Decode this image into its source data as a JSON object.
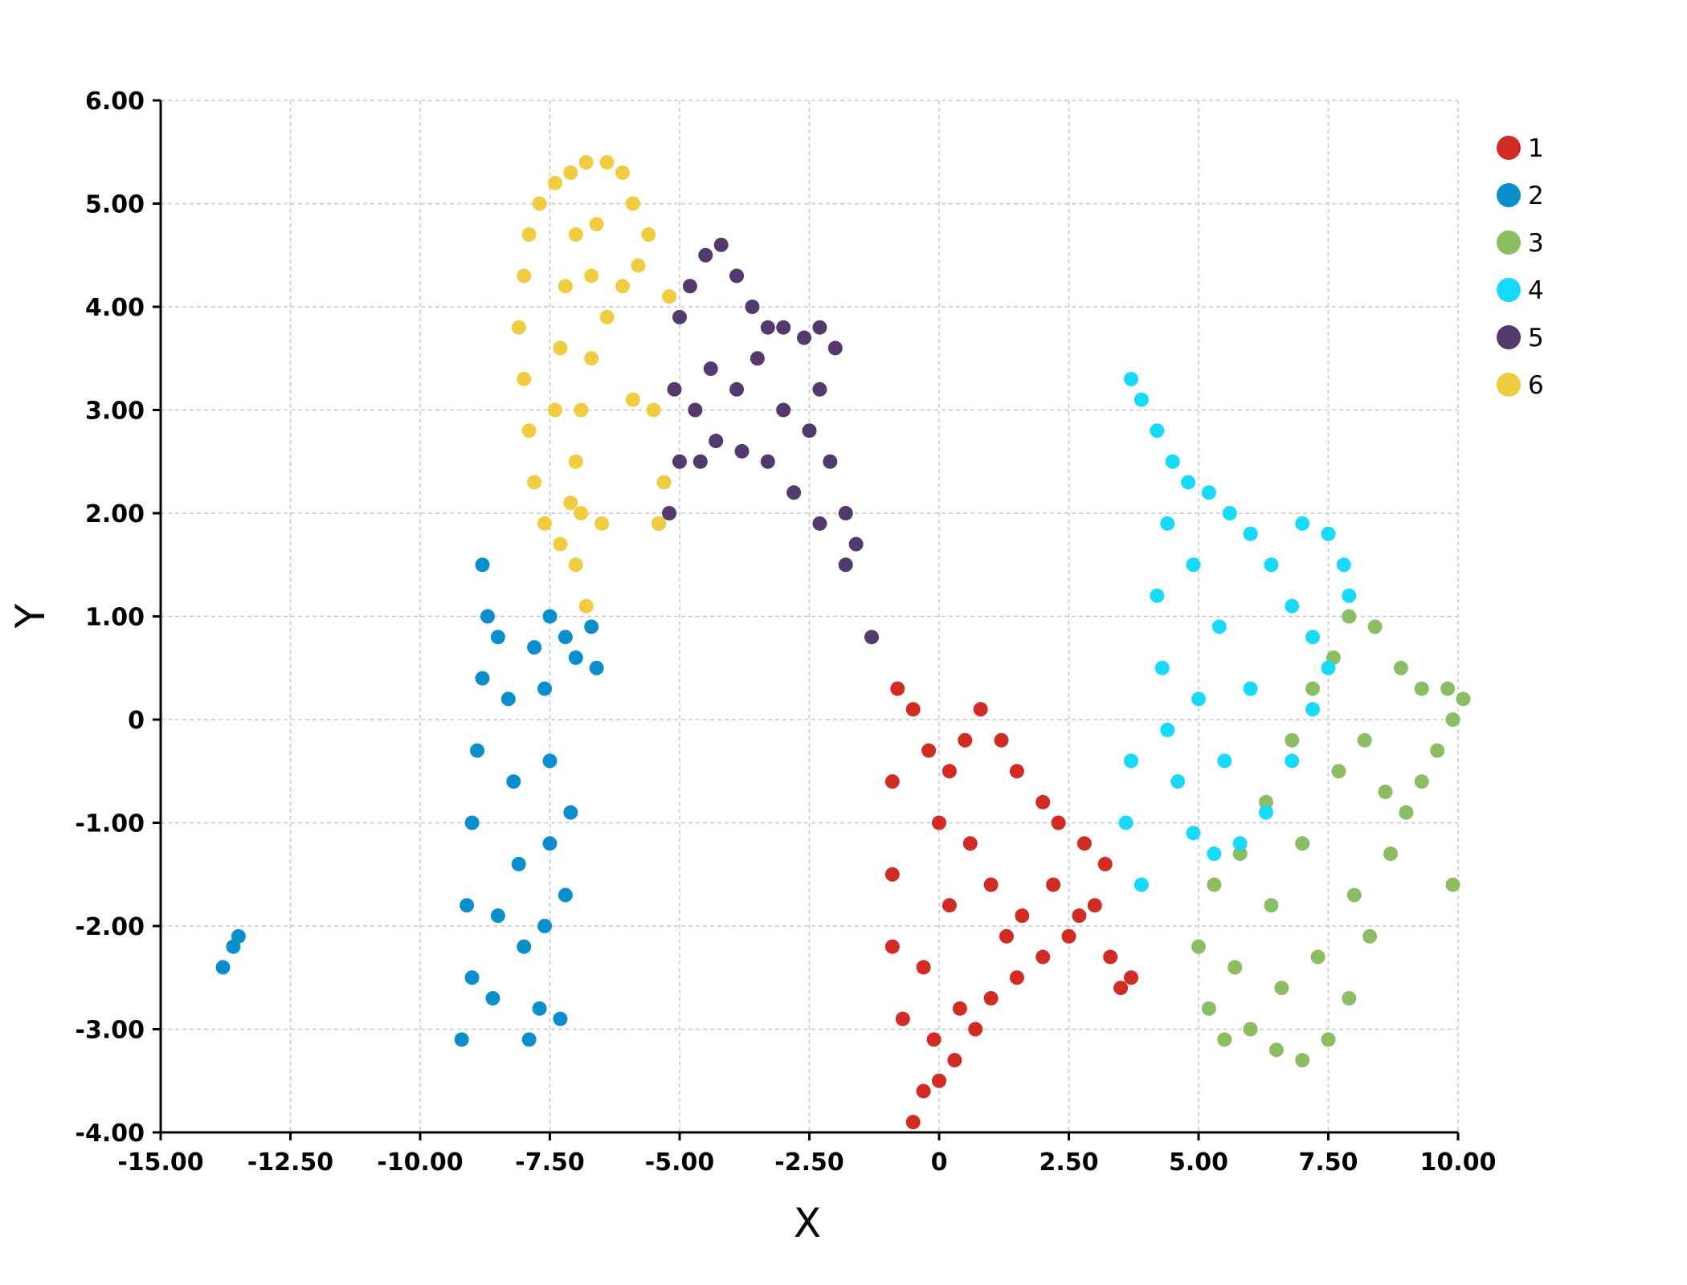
{
  "chart_data": {
    "type": "scatter",
    "title": "",
    "xlabel": "X",
    "ylabel": "Y",
    "xlim": [
      -15,
      10
    ],
    "ylim": [
      -4,
      6
    ],
    "xticks": [
      {
        "value": -15,
        "label": "-15.00"
      },
      {
        "value": -12.5,
        "label": "-12.50"
      },
      {
        "value": -10,
        "label": "-10.00"
      },
      {
        "value": -7.5,
        "label": "-7.50"
      },
      {
        "value": -5,
        "label": "-5.00"
      },
      {
        "value": -2.5,
        "label": "-2.50"
      },
      {
        "value": 0,
        "label": "0"
      },
      {
        "value": 2.5,
        "label": "2.50"
      },
      {
        "value": 5,
        "label": "5.00"
      },
      {
        "value": 7.5,
        "label": "7.50"
      },
      {
        "value": 10,
        "label": "10.00"
      }
    ],
    "yticks": [
      {
        "value": 6,
        "label": "6.00"
      },
      {
        "value": 5,
        "label": "5.00"
      },
      {
        "value": 4,
        "label": "4.00"
      },
      {
        "value": 3,
        "label": "3.00"
      },
      {
        "value": 2,
        "label": "2.00"
      },
      {
        "value": 1,
        "label": "1.00"
      },
      {
        "value": 0,
        "label": "0"
      },
      {
        "value": -1,
        "label": "-1.00"
      },
      {
        "value": -2,
        "label": "-2.00"
      },
      {
        "value": -3,
        "label": "-3.00"
      },
      {
        "value": -4,
        "label": "-4.00"
      }
    ],
    "grid": true,
    "legend_position": "top-right",
    "series": [
      {
        "name": "1",
        "color": "#D12B24",
        "points": [
          [
            -0.5,
            -3.9
          ],
          [
            -0.3,
            -3.6
          ],
          [
            0,
            -3.5
          ],
          [
            0.3,
            -3.3
          ],
          [
            0.7,
            -3.0
          ],
          [
            1.0,
            -2.7
          ],
          [
            1.5,
            -2.5
          ],
          [
            2.0,
            -2.3
          ],
          [
            2.5,
            -2.1
          ],
          [
            3.0,
            -1.8
          ],
          [
            3.2,
            -1.4
          ],
          [
            2.8,
            -1.2
          ],
          [
            2.3,
            -1.0
          ],
          [
            2.0,
            -0.8
          ],
          [
            1.5,
            -0.5
          ],
          [
            1.2,
            -0.2
          ],
          [
            0.8,
            0.1
          ],
          [
            0.5,
            -0.2
          ],
          [
            0.2,
            -0.5
          ],
          [
            -0.2,
            -0.3
          ],
          [
            -0.5,
            0.1
          ],
          [
            -0.8,
            0.3
          ],
          [
            -0.9,
            -0.6
          ],
          [
            -0.9,
            -1.5
          ],
          [
            -0.9,
            -2.2
          ],
          [
            -0.7,
            -2.9
          ],
          [
            -0.3,
            -2.4
          ],
          [
            0.2,
            -1.8
          ],
          [
            0.6,
            -1.2
          ],
          [
            1.0,
            -1.6
          ],
          [
            1.6,
            -1.9
          ],
          [
            2.2,
            -1.6
          ],
          [
            2.7,
            -1.9
          ],
          [
            3.3,
            -2.3
          ],
          [
            3.5,
            -2.6
          ],
          [
            3.7,
            -2.5
          ],
          [
            0.0,
            -1.0
          ],
          [
            0.4,
            -2.8
          ],
          [
            -0.1,
            -3.1
          ],
          [
            1.3,
            -2.1
          ]
        ]
      },
      {
        "name": "2",
        "color": "#0A8FCE",
        "points": [
          [
            -9.2,
            -3.1
          ],
          [
            -9.0,
            -2.5
          ],
          [
            -9.1,
            -1.8
          ],
          [
            -9.0,
            -1.0
          ],
          [
            -8.9,
            -0.3
          ],
          [
            -8.8,
            0.4
          ],
          [
            -8.7,
            1.0
          ],
          [
            -8.8,
            1.5
          ],
          [
            -8.5,
            0.8
          ],
          [
            -8.3,
            0.2
          ],
          [
            -8.2,
            -0.6
          ],
          [
            -8.1,
            -1.4
          ],
          [
            -8.0,
            -2.2
          ],
          [
            -7.9,
            -3.1
          ],
          [
            -7.7,
            -2.8
          ],
          [
            -7.6,
            -2.0
          ],
          [
            -7.5,
            -1.2
          ],
          [
            -7.5,
            -0.4
          ],
          [
            -7.6,
            0.3
          ],
          [
            -7.8,
            0.7
          ],
          [
            -7.5,
            1.0
          ],
          [
            -7.2,
            0.8
          ],
          [
            -7.0,
            0.6
          ],
          [
            -6.7,
            0.9
          ],
          [
            -6.6,
            0.5
          ],
          [
            -7.3,
            -2.9
          ],
          [
            -7.2,
            -1.7
          ],
          [
            -7.1,
            -0.9
          ],
          [
            -8.5,
            -1.9
          ],
          [
            -8.6,
            -2.7
          ],
          [
            -13.8,
            -2.4
          ],
          [
            -13.6,
            -2.2
          ],
          [
            -13.5,
            -2.1
          ]
        ]
      },
      {
        "name": "3",
        "color": "#8BBE62",
        "points": [
          [
            5.2,
            -2.8
          ],
          [
            5.5,
            -3.1
          ],
          [
            6.0,
            -3.0
          ],
          [
            6.5,
            -3.2
          ],
          [
            7.0,
            -3.3
          ],
          [
            7.5,
            -3.1
          ],
          [
            7.9,
            -2.7
          ],
          [
            8.3,
            -2.1
          ],
          [
            8.7,
            -1.3
          ],
          [
            9.0,
            -0.9
          ],
          [
            9.3,
            -0.6
          ],
          [
            9.6,
            -0.3
          ],
          [
            9.9,
            0.0
          ],
          [
            10.1,
            0.2
          ],
          [
            9.8,
            0.3
          ],
          [
            9.3,
            0.3
          ],
          [
            8.9,
            0.5
          ],
          [
            8.4,
            0.9
          ],
          [
            7.9,
            1.0
          ],
          [
            7.6,
            0.6
          ],
          [
            7.2,
            0.3
          ],
          [
            6.8,
            -0.2
          ],
          [
            6.3,
            -0.8
          ],
          [
            5.8,
            -1.3
          ],
          [
            5.3,
            -1.6
          ],
          [
            5.0,
            -2.2
          ],
          [
            5.7,
            -2.4
          ],
          [
            6.4,
            -1.8
          ],
          [
            7.0,
            -1.2
          ],
          [
            7.7,
            -0.5
          ],
          [
            8.2,
            -0.2
          ],
          [
            8.6,
            -0.7
          ],
          [
            8.0,
            -1.7
          ],
          [
            7.3,
            -2.3
          ],
          [
            6.6,
            -2.6
          ],
          [
            9.9,
            -1.6
          ]
        ]
      },
      {
        "name": "4",
        "color": "#17DAFA",
        "points": [
          [
            3.7,
            3.3
          ],
          [
            3.9,
            3.1
          ],
          [
            4.2,
            2.8
          ],
          [
            4.5,
            2.5
          ],
          [
            4.8,
            2.3
          ],
          [
            5.2,
            2.2
          ],
          [
            5.6,
            2.0
          ],
          [
            6.0,
            1.8
          ],
          [
            6.4,
            1.5
          ],
          [
            6.8,
            1.1
          ],
          [
            7.2,
            0.8
          ],
          [
            7.5,
            0.5
          ],
          [
            7.2,
            0.1
          ],
          [
            6.8,
            -0.4
          ],
          [
            6.3,
            -0.9
          ],
          [
            5.8,
            -1.2
          ],
          [
            5.3,
            -1.3
          ],
          [
            4.9,
            -1.1
          ],
          [
            4.6,
            -0.6
          ],
          [
            4.4,
            -0.1
          ],
          [
            4.3,
            0.5
          ],
          [
            4.2,
            1.2
          ],
          [
            4.4,
            1.9
          ],
          [
            4.9,
            1.5
          ],
          [
            5.4,
            0.9
          ],
          [
            6.0,
            0.3
          ],
          [
            5.5,
            -0.4
          ],
          [
            5.0,
            0.2
          ],
          [
            7.0,
            1.9
          ],
          [
            7.5,
            1.8
          ],
          [
            7.8,
            1.5
          ],
          [
            7.9,
            1.2
          ],
          [
            3.7,
            -0.4
          ],
          [
            3.6,
            -1.0
          ],
          [
            3.9,
            -1.6
          ]
        ]
      },
      {
        "name": "5",
        "color": "#54396E",
        "points": [
          [
            -5.2,
            2.0
          ],
          [
            -5.4,
            1.9
          ],
          [
            -5.0,
            2.5
          ],
          [
            -5.1,
            3.2
          ],
          [
            -5.0,
            3.9
          ],
          [
            -4.8,
            4.2
          ],
          [
            -4.5,
            4.5
          ],
          [
            -4.2,
            4.6
          ],
          [
            -3.9,
            4.3
          ],
          [
            -3.6,
            4.0
          ],
          [
            -3.3,
            3.8
          ],
          [
            -3.0,
            3.8
          ],
          [
            -2.6,
            3.7
          ],
          [
            -2.3,
            3.8
          ],
          [
            -2.0,
            3.6
          ],
          [
            -2.3,
            3.2
          ],
          [
            -2.5,
            2.8
          ],
          [
            -2.1,
            2.5
          ],
          [
            -1.8,
            2.0
          ],
          [
            -1.6,
            1.7
          ],
          [
            -1.8,
            1.5
          ],
          [
            -2.3,
            1.9
          ],
          [
            -2.8,
            2.2
          ],
          [
            -3.3,
            2.5
          ],
          [
            -3.8,
            2.6
          ],
          [
            -4.3,
            2.7
          ],
          [
            -4.6,
            2.5
          ],
          [
            -4.7,
            3.0
          ],
          [
            -4.4,
            3.4
          ],
          [
            -3.9,
            3.2
          ],
          [
            -3.5,
            3.5
          ],
          [
            -3.0,
            3.0
          ],
          [
            -1.3,
            0.8
          ]
        ]
      },
      {
        "name": "6",
        "color": "#F0CC40",
        "points": [
          [
            -6.8,
            1.1
          ],
          [
            -7.0,
            1.5
          ],
          [
            -7.3,
            1.7
          ],
          [
            -7.6,
            1.9
          ],
          [
            -7.8,
            2.3
          ],
          [
            -7.9,
            2.8
          ],
          [
            -8.0,
            3.3
          ],
          [
            -8.1,
            3.8
          ],
          [
            -8.0,
            4.3
          ],
          [
            -7.9,
            4.7
          ],
          [
            -7.7,
            5.0
          ],
          [
            -7.4,
            5.2
          ],
          [
            -7.1,
            5.3
          ],
          [
            -6.8,
            5.4
          ],
          [
            -6.4,
            5.4
          ],
          [
            -6.1,
            5.3
          ],
          [
            -5.9,
            5.0
          ],
          [
            -5.6,
            4.7
          ],
          [
            -5.8,
            4.4
          ],
          [
            -6.1,
            4.2
          ],
          [
            -6.4,
            3.9
          ],
          [
            -6.7,
            3.5
          ],
          [
            -6.9,
            3.0
          ],
          [
            -7.0,
            2.5
          ],
          [
            -7.1,
            2.1
          ],
          [
            -7.4,
            3.0
          ],
          [
            -7.3,
            3.6
          ],
          [
            -7.2,
            4.2
          ],
          [
            -7.0,
            4.7
          ],
          [
            -6.6,
            4.8
          ],
          [
            -6.7,
            4.3
          ],
          [
            -6.9,
            2.0
          ],
          [
            -6.5,
            1.9
          ],
          [
            -5.9,
            3.1
          ],
          [
            -5.5,
            3.0
          ],
          [
            -5.2,
            4.1
          ],
          [
            -5.3,
            2.3
          ],
          [
            -5.4,
            1.9
          ]
        ]
      }
    ]
  }
}
